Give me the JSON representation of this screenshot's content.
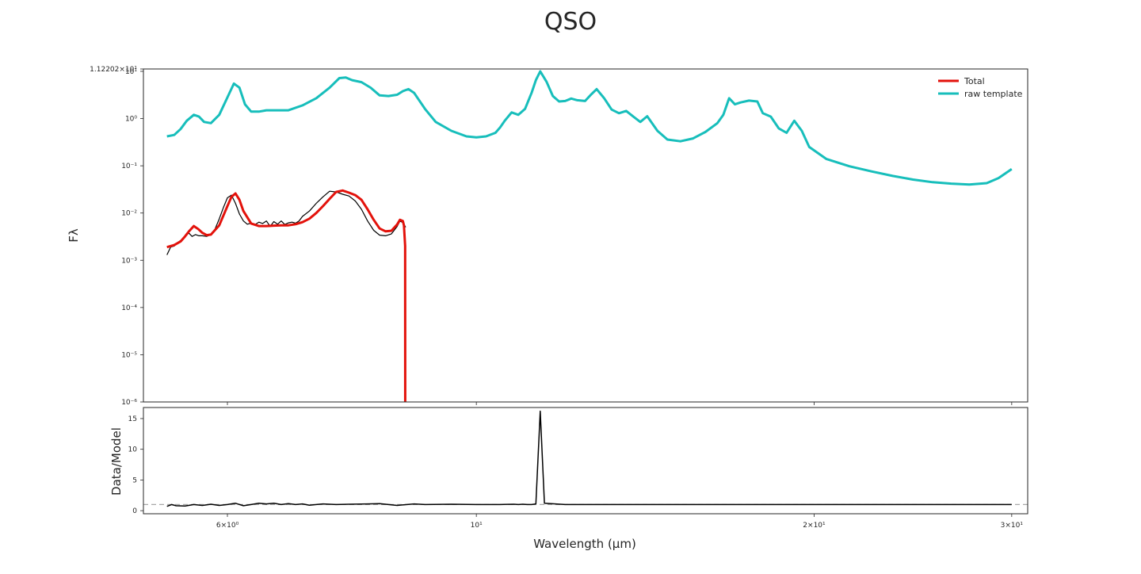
{
  "chart_data": {
    "type": "line",
    "title": "QSO",
    "xlabel": "Wavelength (μm)",
    "x_scale": "log",
    "xlim": [
      5.05,
      31.0
    ],
    "x_ticks": [
      {
        "value": 6,
        "label": "6×10⁰"
      },
      {
        "value": 10,
        "label": "10¹"
      },
      {
        "value": 20,
        "label": "2×10¹"
      },
      {
        "value": 30,
        "label": "3×10¹"
      }
    ],
    "panels": [
      {
        "id": "main",
        "ylabel": "Fλ",
        "y_scale": "log",
        "ylim": [
          1e-06,
          11.2202
        ],
        "y_ticks": [
          {
            "value": 1e-06,
            "label": "10⁻⁶"
          },
          {
            "value": 1e-05,
            "label": "10⁻⁵"
          },
          {
            "value": 0.0001,
            "label": "10⁻⁴"
          },
          {
            "value": 0.001,
            "label": "10⁻³"
          },
          {
            "value": 0.01,
            "label": "10⁻²"
          },
          {
            "value": 0.1,
            "label": "10⁻¹"
          },
          {
            "value": 1,
            "label": "10⁰"
          },
          {
            "value": 10,
            "label": "10¹"
          },
          {
            "value": 11.2202,
            "label": "1.12202×10¹"
          }
        ],
        "legend": {
          "position": "upper right",
          "entries": [
            "Total",
            "raw template"
          ]
        },
        "series": [
          {
            "name": "raw template",
            "color": "#17bebb",
            "width": 3,
            "x": [
              5.3,
              5.38,
              5.45,
              5.52,
              5.6,
              5.66,
              5.72,
              5.8,
              5.9,
              6.0,
              6.08,
              6.15,
              6.22,
              6.3,
              6.4,
              6.5,
              6.6,
              6.8,
              7.0,
              7.2,
              7.4,
              7.55,
              7.65,
              7.75,
              7.9,
              8.05,
              8.2,
              8.35,
              8.5,
              8.6,
              8.7,
              8.8,
              9.0,
              9.2,
              9.5,
              9.8,
              10.0,
              10.2,
              10.4,
              10.5,
              10.6,
              10.75,
              10.9,
              11.05,
              11.2,
              11.3,
              11.4,
              11.55,
              11.7,
              11.85,
              12.0,
              12.15,
              12.3,
              12.5,
              12.65,
              12.8,
              13.0,
              13.2,
              13.4,
              13.6,
              13.8,
              14.0,
              14.2,
              14.5,
              14.8,
              15.2,
              15.6,
              16.0,
              16.4,
              16.6,
              16.8,
              17.0,
              17.2,
              17.5,
              17.8,
              18.0,
              18.3,
              18.6,
              18.9,
              19.2,
              19.5,
              19.8,
              20.5,
              21.5,
              22.5,
              23.5,
              24.5,
              25.5,
              26.5,
              27.5,
              28.5,
              29.2,
              30.0
            ],
            "y": [
              0.42,
              0.45,
              0.6,
              0.9,
              1.2,
              1.1,
              0.85,
              0.8,
              1.2,
              2.8,
              5.5,
              4.5,
              2.0,
              1.4,
              1.4,
              1.5,
              1.5,
              1.5,
              1.9,
              2.7,
              4.5,
              7.2,
              7.4,
              6.5,
              5.9,
              4.5,
              3.1,
              3.0,
              3.2,
              3.8,
              4.2,
              3.5,
              1.6,
              0.85,
              0.55,
              0.42,
              0.4,
              0.42,
              0.5,
              0.65,
              0.9,
              1.35,
              1.2,
              1.6,
              3.5,
              6.5,
              10.0,
              6.0,
              3.0,
              2.3,
              2.35,
              2.65,
              2.45,
              2.35,
              3.2,
              4.2,
              2.7,
              1.55,
              1.3,
              1.45,
              1.1,
              0.85,
              1.12,
              0.55,
              0.36,
              0.33,
              0.38,
              0.52,
              0.8,
              1.2,
              2.7,
              2.0,
              2.2,
              2.4,
              2.3,
              1.3,
              1.1,
              0.62,
              0.5,
              0.9,
              0.55,
              0.25,
              0.14,
              0.098,
              0.076,
              0.061,
              0.051,
              0.045,
              0.042,
              0.04,
              0.043,
              0.055,
              0.085
            ]
          },
          {
            "name": "data",
            "color": "#000000",
            "width": 1.2,
            "x": [
              5.3,
              5.34,
              5.38,
              5.42,
              5.46,
              5.5,
              5.54,
              5.58,
              5.62,
              5.66,
              5.7,
              5.75,
              5.8,
              5.85,
              5.9,
              5.95,
              6.0,
              6.05,
              6.1,
              6.15,
              6.2,
              6.25,
              6.3,
              6.35,
              6.4,
              6.45,
              6.5,
              6.55,
              6.6,
              6.65,
              6.7,
              6.75,
              6.8,
              6.85,
              6.9,
              6.95,
              7.0,
              7.1,
              7.2,
              7.3,
              7.4,
              7.5,
              7.6,
              7.7,
              7.8,
              7.9,
              8.0,
              8.1,
              8.2,
              8.3,
              8.4,
              8.5,
              8.55,
              8.6,
              8.65
            ],
            "y": [
              0.0013,
              0.0019,
              0.002,
              0.0024,
              0.0027,
              0.0031,
              0.0038,
              0.0032,
              0.0035,
              0.0033,
              0.0033,
              0.0032,
              0.0035,
              0.0046,
              0.0075,
              0.013,
              0.021,
              0.024,
              0.016,
              0.0095,
              0.0068,
              0.0058,
              0.0061,
              0.0057,
              0.0064,
              0.006,
              0.0068,
              0.0052,
              0.0066,
              0.0058,
              0.0068,
              0.0057,
              0.0062,
              0.0064,
              0.0061,
              0.0068,
              0.0085,
              0.011,
              0.016,
              0.022,
              0.029,
              0.028,
              0.025,
              0.023,
              0.018,
              0.012,
              0.0068,
              0.0043,
              0.0034,
              0.0033,
              0.0036,
              0.0052,
              0.0068,
              0.0063,
              0.005
            ]
          },
          {
            "name": "Total",
            "color": "#e3120b",
            "width": 3,
            "x": [
              5.3,
              5.38,
              5.45,
              5.5,
              5.55,
              5.6,
              5.65,
              5.7,
              5.75,
              5.8,
              5.9,
              6.0,
              6.05,
              6.1,
              6.15,
              6.2,
              6.3,
              6.4,
              6.5,
              6.6,
              6.7,
              6.8,
              6.9,
              7.0,
              7.1,
              7.2,
              7.3,
              7.4,
              7.5,
              7.6,
              7.7,
              7.8,
              7.9,
              8.0,
              8.1,
              8.2,
              8.3,
              8.4,
              8.5,
              8.55,
              8.6,
              8.62,
              8.64,
              8.642
            ],
            "y": [
              0.0019,
              0.0021,
              0.0025,
              0.0032,
              0.0042,
              0.0053,
              0.0046,
              0.0038,
              0.0034,
              0.0035,
              0.0055,
              0.014,
              0.022,
              0.026,
              0.019,
              0.011,
              0.006,
              0.0053,
              0.0053,
              0.0054,
              0.0055,
              0.0055,
              0.0058,
              0.0064,
              0.0076,
              0.01,
              0.014,
              0.02,
              0.028,
              0.03,
              0.027,
              0.024,
              0.019,
              0.012,
              0.0072,
              0.0047,
              0.0041,
              0.0042,
              0.0057,
              0.0072,
              0.0068,
              0.0055,
              0.002,
              1e-06
            ]
          }
        ]
      },
      {
        "id": "ratio",
        "ylabel": "Data/Model",
        "y_scale": "linear",
        "ylim": [
          -0.5,
          16.8
        ],
        "y_ticks": [
          {
            "value": 0,
            "label": "0"
          },
          {
            "value": 5,
            "label": "5"
          },
          {
            "value": 10,
            "label": "10"
          },
          {
            "value": 15,
            "label": "15"
          }
        ],
        "hline": 1,
        "series": [
          {
            "name": "ratio",
            "color": "#000000",
            "width": 1.5,
            "x": [
              5.3,
              5.35,
              5.4,
              5.5,
              5.6,
              5.7,
              5.8,
              5.9,
              6.0,
              6.1,
              6.2,
              6.3,
              6.4,
              6.5,
              6.6,
              6.7,
              6.8,
              6.9,
              7.0,
              7.1,
              7.2,
              7.3,
              7.5,
              7.7,
              8.0,
              8.2,
              8.5,
              8.8,
              9.0,
              9.5,
              10.0,
              10.5,
              10.8,
              10.9,
              11.0,
              11.1,
              11.2,
              11.3,
              11.4,
              11.5,
              12.0,
              13.0,
              15.0,
              18.0,
              22.0,
              26.0,
              30.0
            ],
            "y": [
              0.7,
              1.0,
              0.8,
              0.75,
              1.0,
              0.85,
              1.05,
              0.85,
              1.0,
              1.2,
              0.8,
              1.0,
              1.2,
              1.1,
              1.2,
              1.0,
              1.15,
              1.0,
              1.1,
              0.9,
              1.0,
              1.1,
              1.0,
              1.05,
              1.1,
              1.15,
              0.85,
              1.1,
              1.0,
              1.05,
              1.0,
              1.0,
              1.05,
              1.0,
              1.05,
              1.0,
              1.0,
              1.1,
              16.2,
              1.2,
              1.0,
              1.0,
              1.0,
              1.0,
              1.0,
              1.0,
              1.0
            ]
          }
        ]
      }
    ]
  }
}
